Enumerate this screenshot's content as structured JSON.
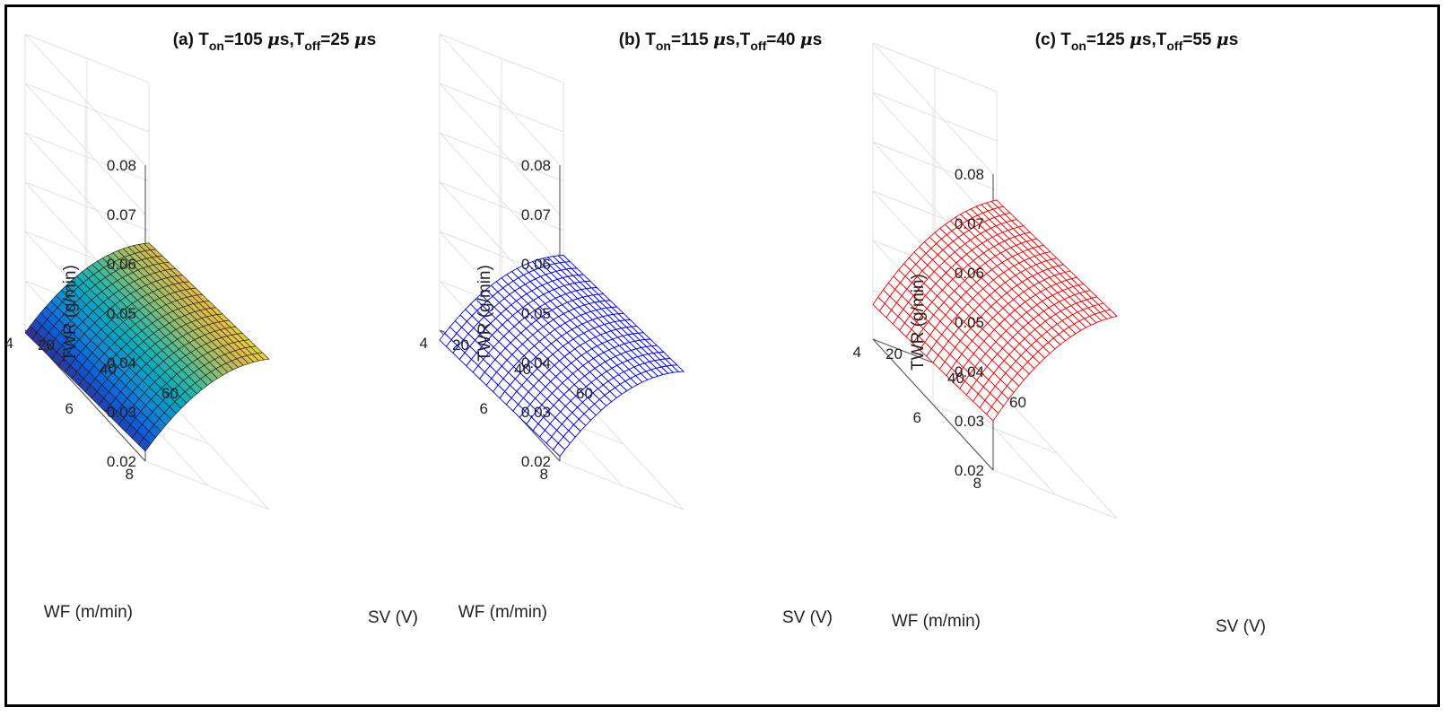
{
  "chart_data": [
    {
      "type": "surface",
      "style": "shaded",
      "title": {
        "prefix": "(a) T",
        "sub1": "on",
        "mid1": "=105 ",
        "mu1": "μ",
        "mid2": "s,T",
        "sub2": "off",
        "mid3": "=25 ",
        "mu2": "μ",
        "suffix": "s"
      },
      "xlabel": "SV (V)",
      "ylabel": "WF (m/min)",
      "zlabel": "TWR (g/min)",
      "xlim": [
        20,
        60
      ],
      "ylim": [
        4,
        8
      ],
      "zlim": [
        0.02,
        0.08
      ],
      "xticks": [
        "20",
        "40",
        "60"
      ],
      "yticks": [
        "4",
        "6",
        "8"
      ],
      "zticks": [
        "0.02",
        "0.03",
        "0.04",
        "0.05",
        "0.06",
        "0.07",
        "0.08"
      ],
      "corners": {
        "sv20_wf4": 0.0195,
        "sv20_wf8": 0.022,
        "sv60_wf4": 0.0475,
        "sv60_wf8": 0.0505
      },
      "curvature": 0.004,
      "color": "parula"
    },
    {
      "type": "surface",
      "style": "mesh",
      "title": {
        "prefix": "(b) T",
        "sub1": "on",
        "mid1": "=115 ",
        "mu1": "μ",
        "mid2": "s,T",
        "sub2": "off",
        "mid3": "=40 ",
        "mu2": "μ",
        "suffix": "s"
      },
      "xlabel": "SV (V)",
      "ylabel": "WF (m/min)",
      "zlabel": "TWR (g/min)",
      "xlim": [
        20,
        60
      ],
      "ylim": [
        4,
        8
      ],
      "zlim": [
        0.02,
        0.08
      ],
      "xticks": [
        "20",
        "40",
        "60"
      ],
      "yticks": [
        "4",
        "6",
        "8"
      ],
      "zticks": [
        "0.02",
        "0.03",
        "0.04",
        "0.05",
        "0.06",
        "0.07",
        "0.08"
      ],
      "corners": {
        "sv20_wf4": 0.018,
        "sv20_wf8": 0.021,
        "sv60_wf4": 0.045,
        "sv60_wf8": 0.048
      },
      "curvature": 0.004,
      "color": "#0000ff"
    },
    {
      "type": "surface",
      "style": "mesh",
      "title": {
        "prefix": "(c) T",
        "sub1": "on",
        "mid1": "=125 ",
        "mu1": "μ",
        "mid2": "s,T",
        "sub2": "off",
        "mid3": "=55 ",
        "mu2": "μ",
        "suffix": "s"
      },
      "xlabel": "SV (V)",
      "ylabel": "WF (m/min)",
      "zlabel": "TWR (g/min)",
      "xlim": [
        20,
        60
      ],
      "ylim": [
        4,
        8
      ],
      "zlim": [
        0.02,
        0.08
      ],
      "xticks": [
        "20",
        "40",
        "60"
      ],
      "yticks": [
        "4",
        "6",
        "8"
      ],
      "zticks": [
        "0.02",
        "0.03",
        "0.04",
        "0.05",
        "0.06",
        "0.07",
        "0.08"
      ],
      "corners": {
        "sv20_wf4": 0.027,
        "sv20_wf8": 0.03,
        "sv60_wf4": 0.058,
        "sv60_wf8": 0.061
      },
      "curvature": 0.004,
      "color": "#ff0000"
    }
  ]
}
